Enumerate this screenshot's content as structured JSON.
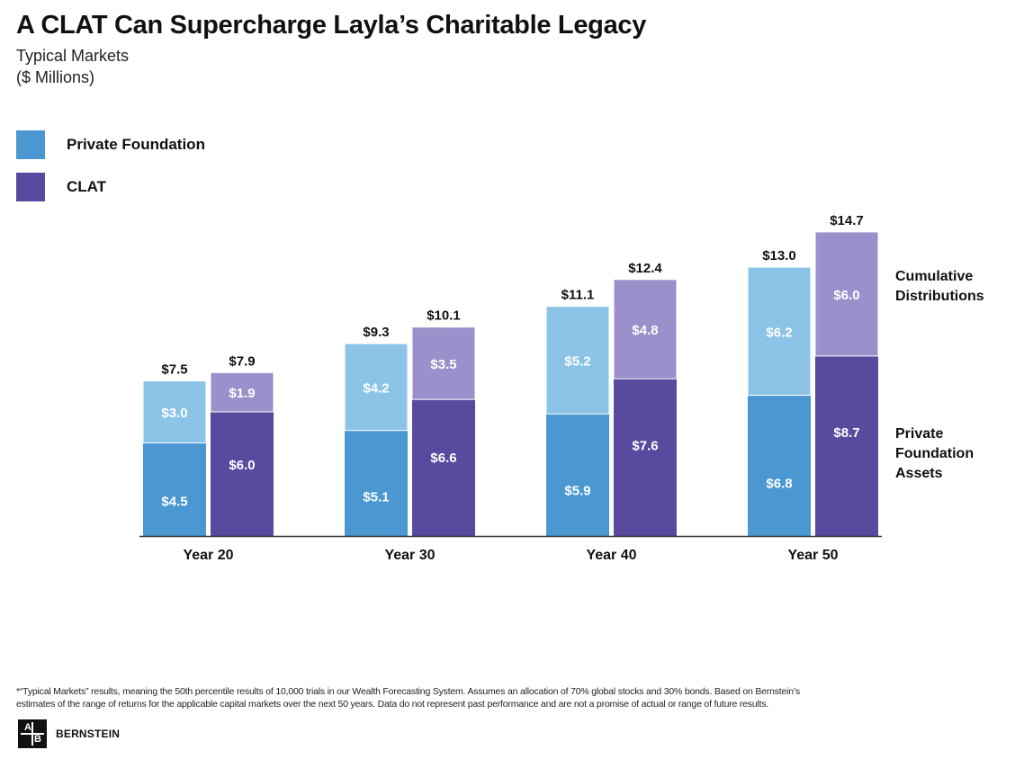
{
  "header": {
    "title": "A CLAT Can Supercharge Layla’s Charitable Legacy",
    "subtitle_line1": "Typical Markets",
    "subtitle_line2": "($ Millions)"
  },
  "legend": [
    {
      "label": "Private Foundation",
      "color": "#4a97d2"
    },
    {
      "label": "CLAT",
      "color": "#584a9e"
    }
  ],
  "colors": {
    "pf_assets": "#4a97d2",
    "pf_distributions": "#8cc4e8",
    "clat_assets": "#584a9e",
    "clat_distributions": "#9b90cb",
    "axis": "#333333"
  },
  "chart_data": {
    "type": "bar",
    "stacked": true,
    "grouped": true,
    "categories": [
      "Year 20",
      "Year 30",
      "Year 40",
      "Year 50"
    ],
    "groups": [
      {
        "name": "Private Foundation",
        "assets": [
          4.5,
          5.1,
          5.9,
          6.8
        ],
        "distributions": [
          3.0,
          4.2,
          5.2,
          6.2
        ],
        "totals": [
          7.5,
          9.3,
          11.1,
          13.0
        ]
      },
      {
        "name": "CLAT",
        "assets": [
          6.0,
          6.6,
          7.6,
          8.7
        ],
        "distributions": [
          1.9,
          3.5,
          4.8,
          6.0
        ],
        "totals": [
          7.9,
          10.1,
          12.4,
          14.7
        ]
      }
    ],
    "segment_labels": [
      "Private Foundation Assets",
      "Cumulative Distributions"
    ],
    "value_prefix": "$",
    "ylim": [
      0,
      16
    ]
  },
  "annotations": {
    "distributions_label": [
      "Cumulative",
      "Distributions"
    ],
    "assets_label": [
      "Private",
      "Foundation",
      "Assets"
    ]
  },
  "footnote": {
    "line1": "*“Typical Markets” results, meaning the 50th percentile results of 10,000 trials in our Wealth Forecasting System. Assumes an allocation of 70% global stocks and 30% bonds. Based on Bernstein’s",
    "line2": "estimates of the range of returns for the applicable capital markets over the next 50 years. Data do not represent past performance and are not a promise of actual or range of future results."
  },
  "logo": {
    "mark_top": "A",
    "mark_bottom": "B",
    "text": "BERNSTEIN"
  }
}
